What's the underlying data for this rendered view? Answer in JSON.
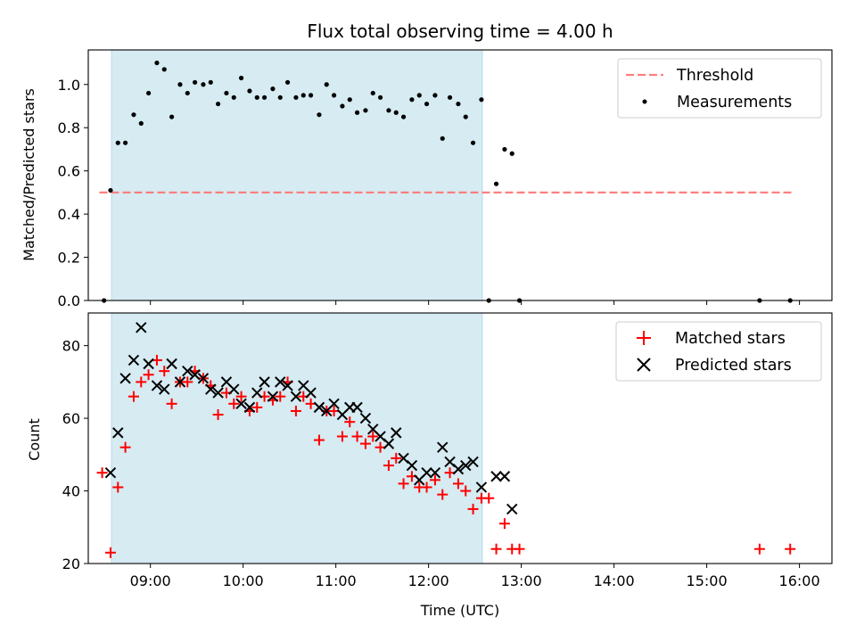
{
  "chart_data": [
    {
      "type": "scatter",
      "title": "Flux total observing time = 4.00 h",
      "ylabel": "Matched/Predicted stars",
      "xlabel": "",
      "xlim": [
        8.33,
        16.35
      ],
      "ylim": [
        0.0,
        1.16
      ],
      "yticks": [
        0.0,
        0.2,
        0.4,
        0.6,
        0.8,
        1.0
      ],
      "ytick_labels": [
        "0.0",
        "0.2",
        "0.4",
        "0.6",
        "0.8",
        "1.0"
      ],
      "xticks": [
        9,
        10,
        11,
        12,
        13,
        14,
        15,
        16
      ],
      "shaded_span": [
        8.58,
        12.58
      ],
      "threshold": {
        "name": "Threshold",
        "y": 0.5,
        "x_range": [
          8.45,
          15.95
        ],
        "color": "#ff7f7f"
      },
      "series": [
        {
          "name": "Measurements",
          "color": "#000000",
          "x": [
            8.5,
            8.57,
            8.65,
            8.73,
            8.82,
            8.9,
            8.98,
            9.07,
            9.15,
            9.23,
            9.32,
            9.4,
            9.48,
            9.57,
            9.65,
            9.73,
            9.82,
            9.9,
            9.98,
            10.07,
            10.15,
            10.23,
            10.32,
            10.4,
            10.48,
            10.57,
            10.65,
            10.73,
            10.82,
            10.9,
            10.98,
            11.07,
            11.15,
            11.23,
            11.32,
            11.4,
            11.48,
            11.57,
            11.65,
            11.73,
            11.82,
            11.9,
            11.98,
            12.07,
            12.15,
            12.23,
            12.32,
            12.4,
            12.48,
            12.57,
            12.65,
            12.73,
            12.82,
            12.9,
            12.98,
            15.57,
            15.9
          ],
          "y": [
            0.0,
            0.51,
            0.73,
            0.73,
            0.86,
            0.82,
            0.96,
            1.1,
            1.07,
            0.85,
            1.0,
            0.96,
            1.01,
            1.0,
            1.01,
            0.91,
            0.96,
            0.94,
            1.03,
            0.97,
            0.94,
            0.94,
            0.98,
            0.94,
            1.01,
            0.94,
            0.95,
            0.95,
            0.86,
            1.0,
            0.95,
            0.9,
            0.93,
            0.87,
            0.88,
            0.96,
            0.94,
            0.88,
            0.87,
            0.85,
            0.93,
            0.95,
            0.91,
            0.95,
            0.75,
            0.94,
            0.91,
            0.85,
            0.73,
            0.93,
            0.0,
            0.54,
            0.7,
            0.68,
            0.0,
            0.0,
            0.0
          ]
        }
      ]
    },
    {
      "type": "scatter",
      "title": "",
      "ylabel": "Count",
      "xlabel": "Time (UTC)",
      "xlim": [
        8.33,
        16.35
      ],
      "ylim": [
        20,
        89
      ],
      "yticks": [
        20,
        40,
        60,
        80
      ],
      "ytick_labels": [
        "20",
        "40",
        "60",
        "80"
      ],
      "xticks": [
        9,
        10,
        11,
        12,
        13,
        14,
        15,
        16
      ],
      "xtick_labels": [
        "09:00",
        "10:00",
        "11:00",
        "12:00",
        "13:00",
        "14:00",
        "15:00",
        "16:00"
      ],
      "shaded_span": [
        8.58,
        12.58
      ],
      "series": [
        {
          "name": "Matched stars",
          "marker": "+",
          "color": "#ff0000",
          "x": [
            8.48,
            8.57,
            8.65,
            8.73,
            8.82,
            8.9,
            8.98,
            9.07,
            9.15,
            9.23,
            9.32,
            9.4,
            9.48,
            9.57,
            9.65,
            9.73,
            9.82,
            9.9,
            9.98,
            10.07,
            10.15,
            10.23,
            10.32,
            10.4,
            10.48,
            10.57,
            10.65,
            10.73,
            10.82,
            10.9,
            10.98,
            11.07,
            11.15,
            11.23,
            11.32,
            11.4,
            11.48,
            11.57,
            11.65,
            11.73,
            11.82,
            11.9,
            11.98,
            12.07,
            12.15,
            12.23,
            12.32,
            12.4,
            12.48,
            12.57,
            12.65,
            12.73,
            12.82,
            12.9,
            12.98,
            15.57,
            15.9
          ],
          "y": [
            45,
            23,
            41,
            52,
            66,
            70,
            72,
            76,
            73,
            64,
            70,
            70,
            73,
            71,
            69,
            61,
            67,
            64,
            66,
            62,
            63,
            66,
            65,
            66,
            70,
            62,
            66,
            64,
            54,
            62,
            62,
            55,
            59,
            55,
            53,
            55,
            52,
            47,
            49,
            42,
            44,
            41,
            41,
            43,
            39,
            45,
            42,
            40,
            35,
            38,
            38,
            24,
            31,
            24,
            24,
            24,
            24
          ]
        },
        {
          "name": "Predicted stars",
          "marker": "x",
          "color": "#000000",
          "x": [
            8.57,
            8.65,
            8.73,
            8.82,
            8.9,
            8.98,
            9.07,
            9.15,
            9.23,
            9.32,
            9.4,
            9.48,
            9.57,
            9.65,
            9.73,
            9.82,
            9.9,
            9.98,
            10.07,
            10.15,
            10.23,
            10.32,
            10.4,
            10.48,
            10.57,
            10.65,
            10.73,
            10.82,
            10.9,
            10.98,
            11.07,
            11.15,
            11.23,
            11.32,
            11.4,
            11.48,
            11.57,
            11.65,
            11.73,
            11.82,
            11.9,
            11.98,
            12.07,
            12.15,
            12.23,
            12.32,
            12.4,
            12.48,
            12.57,
            12.73,
            12.82,
            12.9
          ],
          "y": [
            45,
            56,
            71,
            76,
            85,
            75,
            69,
            68,
            75,
            70,
            73,
            72,
            71,
            68,
            67,
            70,
            68,
            64,
            63,
            67,
            70,
            66,
            70,
            69,
            66,
            69,
            67,
            63,
            62,
            64,
            61,
            63,
            63,
            60,
            57,
            55,
            53,
            56,
            49,
            47,
            43,
            45,
            45,
            52,
            48,
            46,
            47,
            48,
            41,
            44,
            44,
            35
          ]
        }
      ]
    }
  ]
}
